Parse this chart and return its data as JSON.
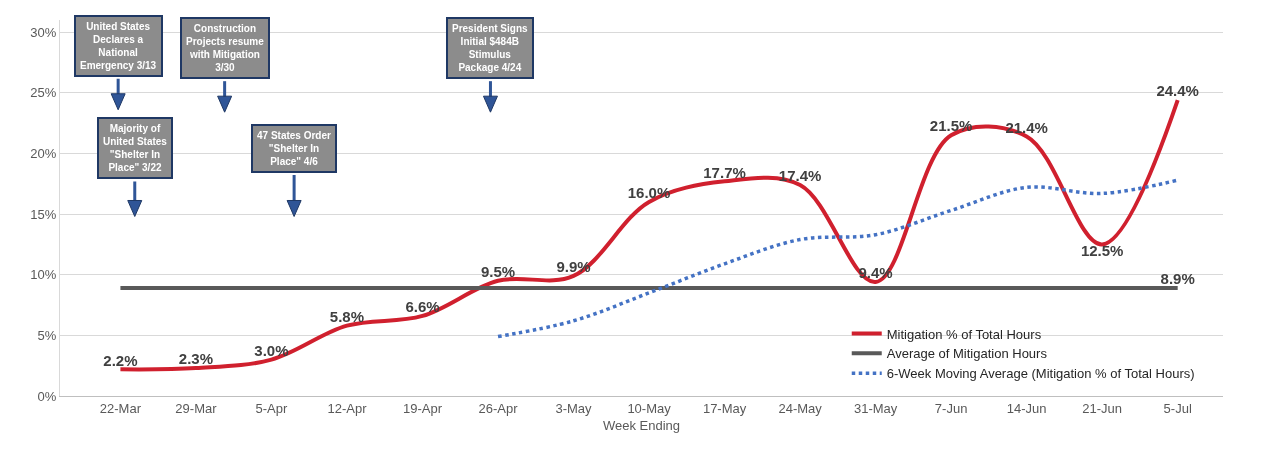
{
  "chart_data": {
    "type": "line",
    "xlabel": "Week Ending",
    "categories": [
      "22-Mar",
      "29-Mar",
      "5-Apr",
      "12-Apr",
      "19-Apr",
      "26-Apr",
      "3-May",
      "10-May",
      "17-May",
      "24-May",
      "31-May",
      "7-Jun",
      "14-Jun",
      "21-Jun",
      "5-Jul"
    ],
    "series": [
      {
        "name": "Mitigation % of Total Hours",
        "color": "#d0202e",
        "values": [
          2.2,
          2.3,
          3.0,
          5.8,
          6.6,
          9.5,
          9.9,
          16.0,
          17.7,
          17.4,
          9.4,
          21.5,
          21.4,
          12.5,
          24.4
        ],
        "value_labels": [
          "2.2%",
          "2.3%",
          "3.0%",
          "5.8%",
          "6.6%",
          "9.5%",
          "9.9%",
          "16.0%",
          "17.7%",
          "17.4%",
          "9.4%",
          "21.5%",
          "21.4%",
          "12.5%",
          "24.4%"
        ]
      },
      {
        "name": "Average of Mitigation Hours",
        "color": "#595959",
        "values": [
          8.9,
          8.9,
          8.9,
          8.9,
          8.9,
          8.9,
          8.9,
          8.9,
          8.9,
          8.9,
          8.9,
          8.9,
          8.9,
          8.9,
          8.9
        ],
        "value_labels": [
          null,
          null,
          null,
          null,
          null,
          null,
          null,
          null,
          null,
          null,
          null,
          null,
          null,
          null,
          "8.9%"
        ]
      },
      {
        "name": "6-Week Moving Average (Mitigation % of Total Hours)",
        "color": "#4472c4",
        "line_style": "dotted",
        "values": [
          null,
          null,
          null,
          null,
          null,
          4.9,
          6.2,
          8.5,
          10.9,
          12.9,
          13.3,
          15.3,
          17.2,
          16.7,
          17.8
        ]
      }
    ],
    "ylim": [
      0,
      31
    ],
    "yticks": [
      {
        "value": 0,
        "label": "0%"
      },
      {
        "value": 5,
        "label": "5%"
      },
      {
        "value": 10,
        "label": "10%"
      },
      {
        "value": 15,
        "label": "15%"
      },
      {
        "value": 20,
        "label": "20%"
      },
      {
        "value": 25,
        "label": "25%"
      },
      {
        "value": 30,
        "label": "30%"
      }
    ],
    "grid": "y",
    "legend": "bottom right",
    "marker": "none",
    "annotations": [
      "United States Declares a National Emergency 3/13",
      "Construction Projects resume with Mitigation 3/30",
      "President Signs Initial $484B Stimulus Package 4/24",
      "Majority of United States \"Shelter In Place\" 3/22",
      "47 States Order \"Shelter In Place\" 4/6"
    ]
  }
}
